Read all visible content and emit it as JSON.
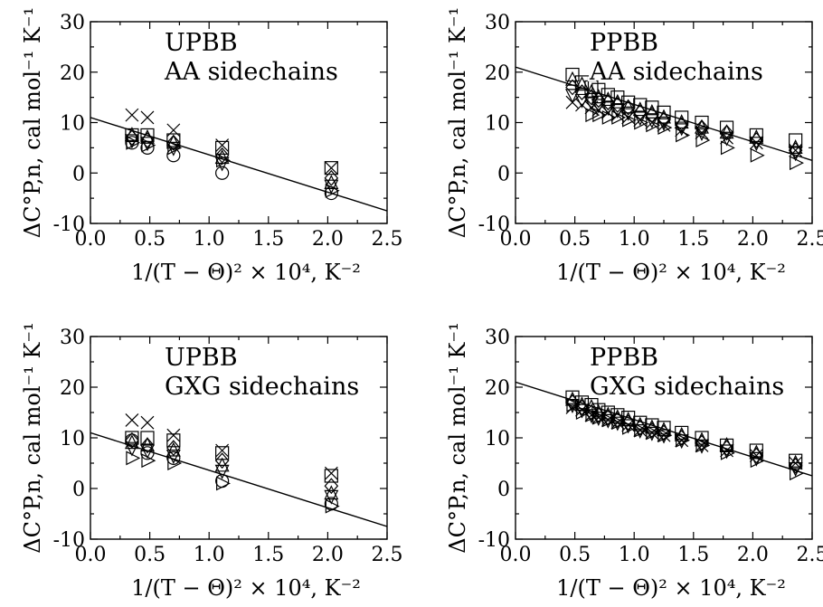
{
  "chart_data": [
    {
      "type": "scatter",
      "panel": "top-left",
      "label_lines": [
        "UPBB",
        "AA sidechains"
      ],
      "xlabel": "1/(T − Θ)² × 10⁴, K⁻²",
      "ylabel": "ΔC°P,n, cal mol⁻¹ K⁻¹",
      "xlim": [
        0.0,
        2.5
      ],
      "ylim": [
        -10,
        30
      ],
      "xticks": [
        "0.0",
        "0.5",
        "1.0",
        "1.5",
        "2.0",
        "2.5"
      ],
      "yticks": [
        "-10",
        "0",
        "10",
        "20",
        "30"
      ],
      "fit_line": {
        "x": [
          0.0,
          2.5
        ],
        "y": [
          11.0,
          -7.5
        ]
      },
      "series": [
        {
          "marker": "cross",
          "x": [
            0.35,
            0.48,
            0.7,
            1.11,
            2.03
          ],
          "y": [
            11.5,
            11.0,
            8.5,
            5.5,
            1.0
          ]
        },
        {
          "marker": "square",
          "x": [
            0.35,
            0.48,
            0.7,
            1.11,
            2.03
          ],
          "y": [
            7.5,
            7.5,
            6.5,
            5.0,
            1.0
          ]
        },
        {
          "marker": "diamond",
          "x": [
            0.35,
            0.48,
            0.7,
            1.11,
            2.03
          ],
          "y": [
            7.0,
            6.5,
            6.0,
            3.5,
            -1.0
          ]
        },
        {
          "marker": "triangle-up",
          "x": [
            0.35,
            0.48,
            0.7,
            1.11,
            2.03
          ],
          "y": [
            7.5,
            7.0,
            6.0,
            3.0,
            -2.0
          ]
        },
        {
          "marker": "triangle-down",
          "x": [
            0.35,
            0.48,
            0.7,
            1.11,
            2.03
          ],
          "y": [
            6.5,
            6.0,
            5.0,
            2.0,
            -2.5
          ]
        },
        {
          "marker": "circle",
          "x": [
            0.35,
            0.48,
            0.7,
            1.11,
            2.03
          ],
          "y": [
            6.0,
            5.0,
            3.5,
            0.0,
            -4.0
          ]
        },
        {
          "marker": "triangle-right",
          "x": [
            0.35,
            0.48,
            0.7,
            1.11,
            2.03
          ],
          "y": [
            6.0,
            5.5,
            5.0,
            2.5,
            -3.5
          ]
        }
      ]
    },
    {
      "type": "scatter",
      "panel": "top-right",
      "label_lines": [
        "PPBB",
        "AA sidechains"
      ],
      "xlabel": "1/(T − Θ)² × 10⁴, K⁻²",
      "ylabel": "ΔC°P,n, cal mol⁻¹ K⁻¹",
      "xlim": [
        0.0,
        2.5
      ],
      "ylim": [
        -10,
        30
      ],
      "xticks": [
        "0.0",
        "0.5",
        "1.0",
        "1.5",
        "2.0",
        "2.5"
      ],
      "yticks": [
        "-10",
        "0",
        "10",
        "20",
        "30"
      ],
      "fit_line": {
        "x": [
          0.0,
          2.5
        ],
        "y": [
          21.0,
          2.5
        ]
      },
      "series": [
        {
          "marker": "square",
          "x": [
            0.48,
            0.56,
            0.64,
            0.7,
            0.78,
            0.86,
            0.95,
            1.05,
            1.15,
            1.25,
            1.4,
            1.57,
            1.78,
            2.03,
            2.36
          ],
          "y": [
            19.5,
            18.0,
            17.0,
            16.5,
            15.5,
            15.0,
            14.0,
            13.5,
            13.0,
            12.0,
            11.0,
            10.0,
            9.0,
            7.5,
            6.5
          ]
        },
        {
          "marker": "triangle-up",
          "x": [
            0.48,
            0.56,
            0.64,
            0.7,
            0.78,
            0.86,
            0.95,
            1.05,
            1.15,
            1.25,
            1.4,
            1.57,
            1.78,
            2.03,
            2.36
          ],
          "y": [
            18.5,
            17.5,
            16.0,
            15.0,
            14.5,
            14.0,
            13.0,
            12.5,
            12.0,
            11.0,
            10.0,
            9.0,
            8.0,
            7.0,
            5.0
          ]
        },
        {
          "marker": "diamond",
          "x": [
            0.48,
            0.56,
            0.64,
            0.7,
            0.78,
            0.86,
            0.95,
            1.05,
            1.15,
            1.25,
            1.4,
            1.57,
            1.78,
            2.03,
            2.36
          ],
          "y": [
            17.0,
            16.0,
            15.0,
            14.5,
            14.0,
            13.5,
            13.0,
            12.0,
            11.5,
            10.5,
            9.5,
            9.0,
            8.0,
            6.5,
            4.5
          ]
        },
        {
          "marker": "triangle-down",
          "x": [
            0.48,
            0.56,
            0.64,
            0.7,
            0.78,
            0.86,
            0.95,
            1.05,
            1.15,
            1.25,
            1.4,
            1.57,
            1.78,
            2.03,
            2.36
          ],
          "y": [
            15.5,
            14.5,
            14.0,
            13.5,
            13.0,
            12.5,
            12.0,
            11.0,
            10.5,
            10.0,
            9.0,
            8.0,
            7.0,
            6.0,
            4.0
          ]
        },
        {
          "marker": "cross",
          "x": [
            0.48,
            0.56,
            0.64,
            0.7,
            0.78,
            0.86,
            0.95,
            1.05,
            1.15,
            1.25,
            1.4,
            1.57,
            1.78,
            2.03,
            2.36
          ],
          "y": [
            14.0,
            13.5,
            13.0,
            12.5,
            12.0,
            11.5,
            11.0,
            10.5,
            10.0,
            9.5,
            8.5,
            8.0,
            7.0,
            6.0,
            4.5
          ]
        },
        {
          "marker": "triangle-right",
          "x": [
            0.64,
            0.7,
            0.78,
            0.86,
            0.95,
            1.05,
            1.15,
            1.25,
            1.4,
            1.57,
            1.78,
            2.03,
            2.36
          ],
          "y": [
            11.5,
            11.5,
            11.0,
            11.0,
            10.5,
            10.0,
            9.5,
            9.0,
            7.5,
            6.5,
            5.0,
            3.5,
            2.0
          ]
        }
      ]
    },
    {
      "type": "scatter",
      "panel": "bottom-left",
      "label_lines": [
        "UPBB",
        "GXG sidechains"
      ],
      "xlabel": "1/(T − Θ)² × 10⁴, K⁻²",
      "ylabel": "ΔC°P,n, cal mol⁻¹ K⁻¹",
      "xlim": [
        0.0,
        2.5
      ],
      "ylim": [
        -10,
        30
      ],
      "xticks": [
        "0.0",
        "0.5",
        "1.0",
        "1.5",
        "2.0",
        "2.5"
      ],
      "yticks": [
        "-10",
        "0",
        "10",
        "20",
        "30"
      ],
      "fit_line": {
        "x": [
          0.0,
          2.5
        ],
        "y": [
          11.0,
          -7.5
        ]
      },
      "series": [
        {
          "marker": "cross",
          "x": [
            0.35,
            0.48,
            0.7,
            1.11,
            2.03
          ],
          "y": [
            13.5,
            13.0,
            10.5,
            7.5,
            3.0
          ]
        },
        {
          "marker": "square",
          "x": [
            0.35,
            0.48,
            0.7,
            1.11,
            2.03
          ],
          "y": [
            10.0,
            10.0,
            9.5,
            7.0,
            2.5
          ]
        },
        {
          "marker": "diamond",
          "x": [
            0.35,
            0.48,
            0.7,
            1.11,
            2.03
          ],
          "y": [
            9.5,
            8.5,
            8.0,
            5.5,
            0.5
          ]
        },
        {
          "marker": "triangle-up",
          "x": [
            0.35,
            0.48,
            0.7,
            1.11,
            2.03
          ],
          "y": [
            9.0,
            8.5,
            7.5,
            4.5,
            -1.0
          ]
        },
        {
          "marker": "triangle-down",
          "x": [
            0.35,
            0.48,
            0.7,
            1.11,
            2.03
          ],
          "y": [
            8.0,
            7.5,
            6.5,
            3.5,
            -1.5
          ]
        },
        {
          "marker": "circle",
          "x": [
            0.35,
            0.48,
            0.7,
            1.11,
            2.03
          ],
          "y": [
            9.5,
            7.0,
            6.0,
            1.5,
            -3.0
          ]
        },
        {
          "marker": "triangle-right",
          "x": [
            0.35,
            0.48,
            0.7,
            1.11,
            2.03
          ],
          "y": [
            6.0,
            5.5,
            5.0,
            1.0,
            -3.5
          ]
        }
      ]
    },
    {
      "type": "scatter",
      "panel": "bottom-right",
      "label_lines": [
        "PPBB",
        "GXG sidechains"
      ],
      "xlabel": "1/(T − Θ)² × 10⁴, K⁻²",
      "ylabel": "ΔC°P,n, cal mol⁻¹ K⁻¹",
      "xlim": [
        0.0,
        2.5
      ],
      "ylim": [
        -10,
        30
      ],
      "xticks": [
        "0.0",
        "0.5",
        "1.0",
        "1.5",
        "2.0",
        "2.5"
      ],
      "yticks": [
        "-10",
        "0",
        "10",
        "20",
        "30"
      ],
      "fit_line": {
        "x": [
          0.0,
          2.5
        ],
        "y": [
          21.0,
          2.5
        ]
      },
      "series": [
        {
          "marker": "square",
          "x": [
            0.48,
            0.56,
            0.64,
            0.7,
            0.78,
            0.86,
            0.95,
            1.05,
            1.15,
            1.25,
            1.4,
            1.57,
            1.78,
            2.03,
            2.36
          ],
          "y": [
            18.0,
            17.0,
            16.5,
            15.5,
            15.0,
            14.5,
            14.0,
            13.0,
            12.5,
            12.0,
            11.0,
            10.0,
            8.5,
            7.5,
            5.5
          ]
        },
        {
          "marker": "triangle-up",
          "x": [
            0.48,
            0.56,
            0.64,
            0.7,
            0.78,
            0.86,
            0.95,
            1.05,
            1.15,
            1.25,
            1.4,
            1.57,
            1.78,
            2.03,
            2.36
          ],
          "y": [
            17.5,
            16.5,
            16.0,
            15.0,
            14.5,
            14.0,
            13.5,
            12.5,
            12.0,
            11.5,
            10.5,
            9.5,
            8.5,
            7.0,
            5.0
          ]
        },
        {
          "marker": "diamond",
          "x": [
            0.48,
            0.56,
            0.64,
            0.7,
            0.78,
            0.86,
            0.95,
            1.05,
            1.15,
            1.25,
            1.4,
            1.57,
            1.78,
            2.03,
            2.36
          ],
          "y": [
            17.0,
            16.0,
            15.0,
            14.5,
            14.0,
            13.5,
            13.0,
            12.0,
            11.5,
            11.0,
            10.0,
            9.0,
            8.0,
            6.5,
            4.5
          ]
        },
        {
          "marker": "triangle-down",
          "x": [
            0.48,
            0.56,
            0.64,
            0.7,
            0.78,
            0.86,
            0.95,
            1.05,
            1.15,
            1.25,
            1.4,
            1.57,
            1.78,
            2.03,
            2.36
          ],
          "y": [
            16.5,
            15.5,
            14.5,
            14.0,
            13.5,
            13.0,
            12.5,
            11.5,
            11.0,
            10.5,
            9.5,
            8.5,
            7.5,
            6.0,
            4.0
          ]
        },
        {
          "marker": "cross",
          "x": [
            0.48,
            0.56,
            0.64,
            0.7,
            0.78,
            0.86,
            0.95,
            1.05,
            1.15,
            1.25,
            1.4,
            1.57,
            1.78,
            2.03,
            2.36
          ],
          "y": [
            16.0,
            15.5,
            14.5,
            14.0,
            13.5,
            13.0,
            12.5,
            11.5,
            11.0,
            10.5,
            9.5,
            8.5,
            7.5,
            6.5,
            5.0
          ]
        },
        {
          "marker": "triangle-right",
          "x": [
            0.48,
            0.56,
            0.64,
            0.7,
            0.78,
            0.86,
            0.95,
            1.05,
            1.15,
            1.25,
            1.4,
            1.57,
            1.78,
            2.03,
            2.36
          ],
          "y": [
            16.5,
            15.0,
            14.5,
            14.0,
            13.5,
            13.0,
            12.0,
            11.5,
            11.0,
            10.5,
            9.5,
            8.5,
            7.0,
            5.5,
            3.0
          ]
        }
      ]
    }
  ]
}
